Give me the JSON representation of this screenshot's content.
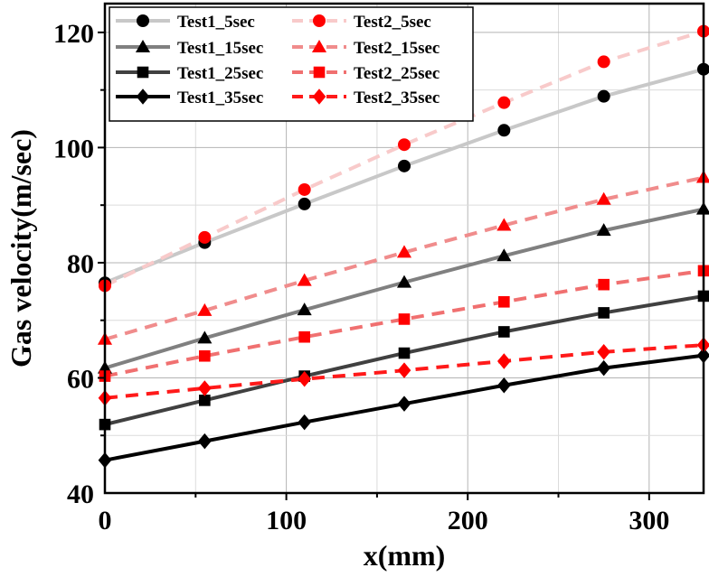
{
  "chart_data": {
    "type": "line",
    "xlabel": "x(mm)",
    "ylabel": "Gas velocity(m/sec)",
    "xlim": [
      0,
      330
    ],
    "ylim": [
      40,
      125
    ],
    "xticks": [
      0,
      100,
      200,
      300
    ],
    "yticks": [
      40,
      60,
      80,
      100,
      120
    ],
    "grid": true,
    "legend_position": "top",
    "x": [
      0,
      55,
      110,
      165,
      220,
      275,
      330
    ],
    "series": [
      {
        "name": "Test1_5sec",
        "marker": "circle",
        "dash": false,
        "line_color": "#c8c8c8",
        "marker_color": "#000000",
        "values": [
          76.5,
          83.5,
          90.2,
          96.8,
          103.0,
          108.9,
          113.6
        ]
      },
      {
        "name": "Test2_5sec",
        "marker": "circle",
        "dash": true,
        "line_color": "#f8caca",
        "marker_color": "#ff0000",
        "values": [
          76.0,
          84.4,
          92.7,
          100.5,
          107.8,
          114.9,
          120.2
        ]
      },
      {
        "name": "Test1_15sec",
        "marker": "triangle",
        "dash": false,
        "line_color": "#808080",
        "marker_color": "#000000",
        "values": [
          61.7,
          66.9,
          71.8,
          76.6,
          81.2,
          85.6,
          89.3
        ]
      },
      {
        "name": "Test2_15sec",
        "marker": "triangle",
        "dash": true,
        "line_color": "#f08c8c",
        "marker_color": "#ff0000",
        "values": [
          66.7,
          71.7,
          76.9,
          81.8,
          86.5,
          91.0,
          94.8
        ]
      },
      {
        "name": "Test1_25sec",
        "marker": "square",
        "dash": false,
        "line_color": "#404040",
        "marker_color": "#000000",
        "values": [
          51.9,
          56.1,
          60.3,
          64.3,
          68.0,
          71.3,
          74.2
        ]
      },
      {
        "name": "Test2_25sec",
        "marker": "square",
        "dash": true,
        "line_color": "#f07070",
        "marker_color": "#ff0000",
        "values": [
          60.3,
          63.8,
          67.1,
          70.2,
          73.2,
          76.2,
          78.6
        ]
      },
      {
        "name": "Test1_35sec",
        "marker": "diamond",
        "dash": false,
        "line_color": "#000000",
        "marker_color": "#000000",
        "values": [
          45.7,
          49.0,
          52.3,
          55.5,
          58.7,
          61.7,
          63.9
        ]
      },
      {
        "name": "Test2_35sec",
        "marker": "diamond",
        "dash": true,
        "line_color": "#ff1a1a",
        "marker_color": "#ff0000",
        "values": [
          56.5,
          58.2,
          59.8,
          61.3,
          62.9,
          64.5,
          65.7
        ]
      }
    ]
  }
}
